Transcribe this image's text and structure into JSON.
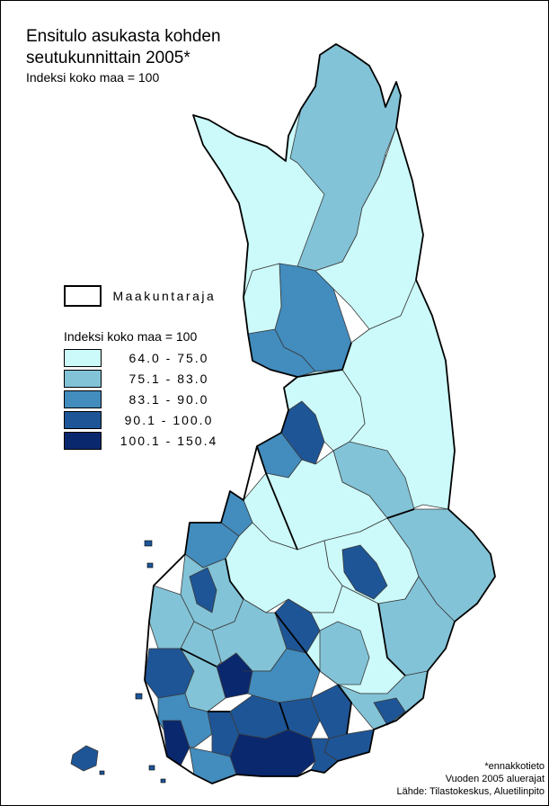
{
  "title": {
    "line1": "Ensitulo asukasta kohden",
    "line2": "seutukunnittain 2005*",
    "subtitle": "Indeksi koko maa = 100"
  },
  "legend": {
    "border_label": "Maakuntaraja",
    "index_title": "Indeksi koko maa = 100",
    "classes": [
      {
        "range": "64.0 - 75.0",
        "color": "#ccfafa"
      },
      {
        "range": "75.1 - 83.0",
        "color": "#82c3d7"
      },
      {
        "range": "83.1 - 90.0",
        "color": "#428cbe"
      },
      {
        "range": "90.1 - 100.0",
        "color": "#1e5596"
      },
      {
        "range": "100.1 - 150.4",
        "color": "#0a286e"
      }
    ]
  },
  "notes": {
    "line1": "*ennakkotieto",
    "line2": "Vuoden 2005 aluerajat",
    "line3": "Lähde: Tilastokeskus, Aluetilinpito"
  }
}
